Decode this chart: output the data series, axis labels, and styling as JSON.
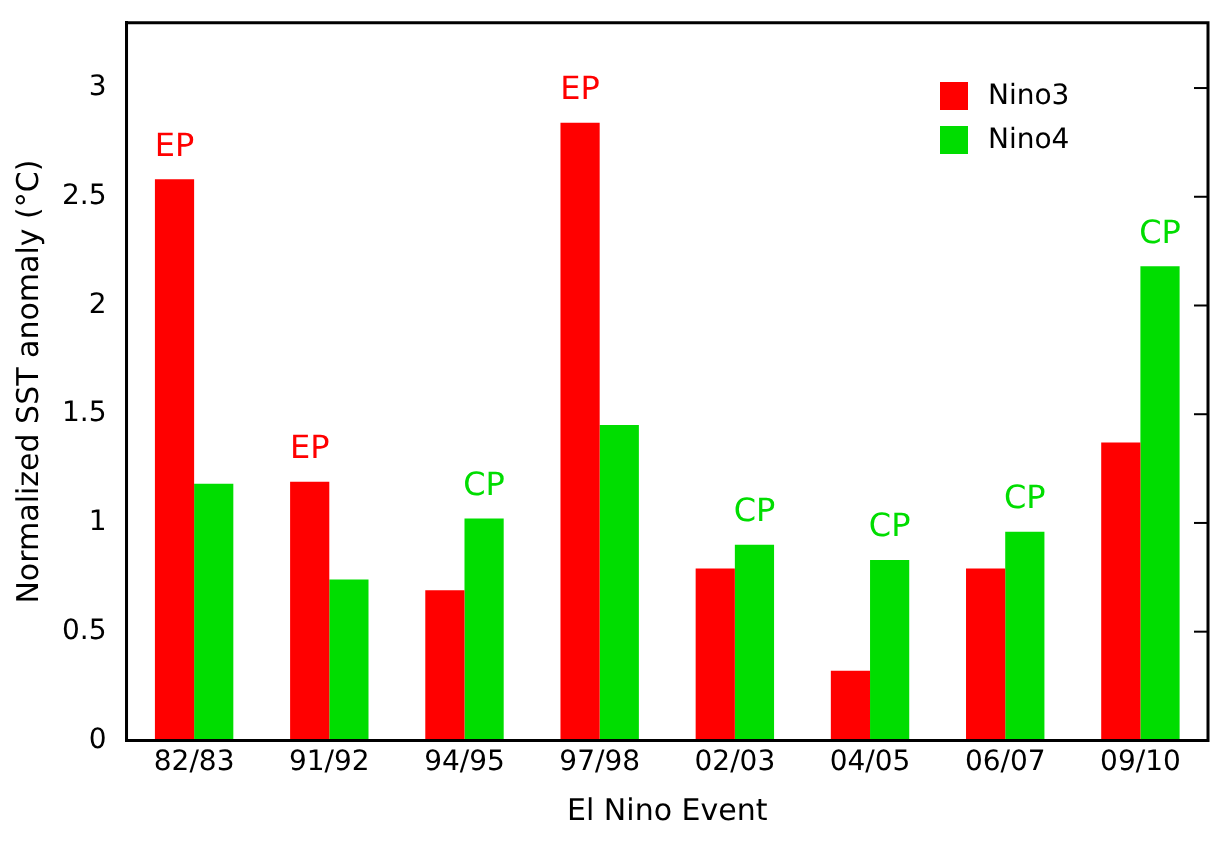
{
  "chart_data": {
    "type": "bar",
    "xlabel": "El Nino Event",
    "ylabel": "Normalized SST anomaly (°C)",
    "categories": [
      "82/83",
      "91/92",
      "94/95",
      "97/98",
      "02/03",
      "04/05",
      "06/07",
      "09/10"
    ],
    "series": [
      {
        "name": "Nino3",
        "color": "#ff0000",
        "values": [
          2.58,
          1.19,
          0.69,
          2.84,
          0.79,
          0.32,
          0.79,
          1.37
        ]
      },
      {
        "name": "Nino4",
        "color": "#00dd00",
        "values": [
          1.18,
          0.74,
          1.02,
          1.45,
          0.9,
          0.83,
          0.96,
          2.18
        ]
      }
    ],
    "ylim": [
      0,
      3.3
    ],
    "yticks": [
      0,
      0.5,
      1,
      1.5,
      2,
      2.5,
      3
    ],
    "grid": false,
    "legend": "top right",
    "annotations": [
      {
        "text": "EP",
        "x": "82/83",
        "y": 2.58
      },
      {
        "text": "EP",
        "x": "91/92",
        "y": 1.19
      },
      {
        "text": "CP",
        "x": "94/95",
        "y": 1.02
      },
      {
        "text": "EP",
        "x": "97/98",
        "y": 2.84
      },
      {
        "text": "CP",
        "x": "02/03",
        "y": 0.9
      },
      {
        "text": "CP",
        "x": "04/05",
        "y": 0.83
      },
      {
        "text": "CP",
        "x": "06/07",
        "y": 0.96
      },
      {
        "text": "CP",
        "x": "09/10",
        "y": 2.18
      }
    ]
  }
}
